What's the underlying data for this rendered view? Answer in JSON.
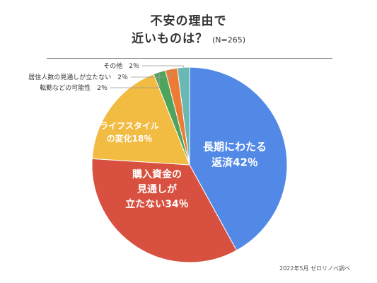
{
  "chart_data": {
    "type": "pie",
    "title_line1": "不安の理由で",
    "title_line2": "近いものは？",
    "title_note": "(N=265)",
    "source": "2022年5月 ゼロリノベ調べ",
    "slices": [
      {
        "label": "長期にわたる返済42％",
        "label_lines": [
          "長期にわたる",
          "返済42％"
        ],
        "value": 42,
        "color": "#5389E6"
      },
      {
        "label": "購入資金の見通しが立たない34％",
        "label_lines": [
          "購入資金の",
          "見通しが",
          "立たない34％"
        ],
        "value": 34,
        "color": "#D8503F"
      },
      {
        "label": "ライフスタイルの変化18％",
        "label_lines": [
          "ライフスタイル",
          "の変化18％"
        ],
        "value": 18,
        "color": "#F2BB41"
      },
      {
        "label": "転勤などの可能性　2％",
        "label_lines": [
          "転勤などの可能性　2％"
        ],
        "value": 2,
        "color": "#4EA45A"
      },
      {
        "label": "居住人数の見通しが立たない　2％",
        "label_lines": [
          "居住人数の見通しが立たない　2％"
        ],
        "value": 2,
        "color": "#EB7B35"
      },
      {
        "label": "その他　2％",
        "label_lines": [
          "その他　2％"
        ],
        "value": 2,
        "color": "#68B9B3"
      }
    ]
  }
}
